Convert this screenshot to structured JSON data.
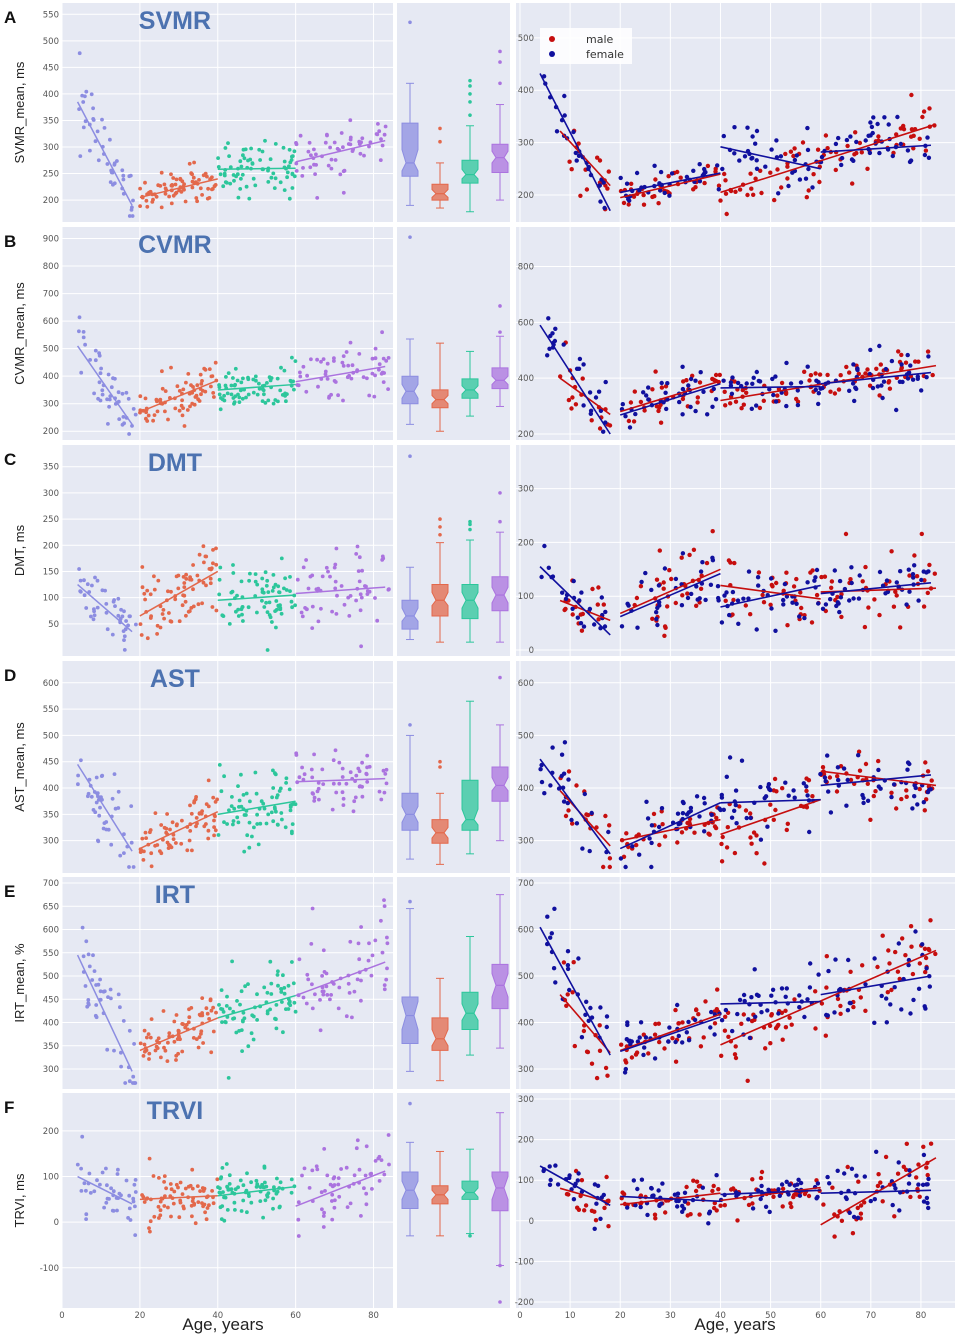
{
  "x_axis_label": "Age, years",
  "colors": {
    "young": "#8c8de1",
    "adult": "#e3684b",
    "middle": "#2cc69b",
    "older": "#ab73df",
    "male": "#c60e0e",
    "female": "#10109e",
    "bg": "#e6e9f3"
  },
  "legend": [
    {
      "label": "male",
      "color": "#c60e0e"
    },
    {
      "label": "female",
      "color": "#10109e"
    }
  ],
  "age_groups": [
    "0-20",
    "20-40",
    "40-60",
    "60+"
  ],
  "chart_data": [
    {
      "type": "scatter",
      "panel": "A",
      "title": "SVMR",
      "ylabel": "SVMR_mean, ms",
      "left_ticks": [
        "200",
        "250",
        "300",
        "350",
        "400",
        "450",
        "500",
        "550"
      ],
      "right_ticks": [
        "200",
        "300",
        "400",
        "500"
      ],
      "xlim": [
        0,
        85
      ],
      "ylim": [
        170,
        560
      ],
      "rylim": [
        160,
        555
      ],
      "fits": [
        [
          4,
          385,
          18,
          190
        ],
        [
          20,
          205,
          40,
          240
        ],
        [
          40,
          258,
          60,
          260
        ],
        [
          60,
          272,
          83,
          312
        ]
      ],
      "fits_male": [
        [
          8,
          322,
          18,
          218
        ],
        [
          20,
          195,
          40,
          240
        ],
        [
          40,
          205,
          83,
          335
        ]
      ],
      "fits_female": [
        [
          4,
          432,
          18,
          170
        ],
        [
          20,
          205,
          40,
          242
        ],
        [
          40,
          292,
          60,
          250
        ],
        [
          60,
          282,
          82,
          295
        ]
      ],
      "box": [
        {
          "min": 190,
          "q1": 245,
          "med": 270,
          "q3": 345,
          "max": 420,
          "nl": 255,
          "nh": 295
        },
        {
          "min": 185,
          "q1": 200,
          "med": 212,
          "q3": 230,
          "max": 270,
          "nl": 205,
          "nh": 220
        },
        {
          "min": 178,
          "q1": 232,
          "med": 248,
          "q3": 275,
          "max": 340,
          "nl": 240,
          "nh": 258
        },
        {
          "min": 200,
          "q1": 252,
          "med": 280,
          "q3": 305,
          "max": 380,
          "nl": 270,
          "nh": 292
        }
      ],
      "outliers": [
        [
          0,
          535
        ],
        [
          1,
          310
        ],
        [
          1,
          335
        ],
        [
          2,
          360
        ],
        [
          2,
          385
        ],
        [
          2,
          400
        ],
        [
          2,
          415
        ],
        [
          2,
          425
        ],
        [
          3,
          420
        ],
        [
          3,
          460
        ],
        [
          3,
          480
        ]
      ],
      "mean": [
        300,
        220,
        258,
        285
      ],
      "sd": [
        50,
        25,
        40,
        40
      ]
    },
    {
      "type": "scatter",
      "panel": "B",
      "title": "CVMR",
      "ylabel": "CVMR_mean, ms",
      "left_ticks": [
        "200",
        "300",
        "400",
        "500",
        "600",
        "700",
        "800",
        "900"
      ],
      "right_ticks": [
        "200",
        "400",
        "600",
        "800"
      ],
      "xlim": [
        0,
        85
      ],
      "ylim": [
        190,
        920
      ],
      "rylim": [
        200,
        920
      ],
      "fits": [
        [
          4,
          510,
          18,
          225
        ],
        [
          20,
          270,
          40,
          385
        ],
        [
          40,
          350,
          60,
          370
        ],
        [
          60,
          380,
          83,
          435
        ]
      ],
      "fits_male": [
        [
          8,
          400,
          18,
          270
        ],
        [
          20,
          280,
          40,
          390
        ],
        [
          40,
          320,
          83,
          445
        ]
      ],
      "fits_female": [
        [
          4,
          590,
          18,
          200
        ],
        [
          20,
          268,
          40,
          380
        ],
        [
          40,
          365,
          60,
          370
        ],
        [
          60,
          380,
          82,
          420
        ]
      ],
      "box": [
        {
          "min": 225,
          "q1": 300,
          "med": 345,
          "q3": 400,
          "max": 535,
          "nl": 320,
          "nh": 370
        },
        {
          "min": 200,
          "q1": 285,
          "med": 315,
          "q3": 350,
          "max": 520,
          "nl": 300,
          "nh": 330
        },
        {
          "min": 255,
          "q1": 320,
          "med": 350,
          "q3": 390,
          "max": 490,
          "nl": 335,
          "nh": 365
        },
        {
          "min": 290,
          "q1": 355,
          "med": 385,
          "q3": 430,
          "max": 545,
          "nl": 370,
          "nh": 400
        }
      ],
      "outliers": [
        [
          0,
          905
        ],
        [
          3,
          560
        ],
        [
          3,
          655
        ]
      ],
      "mean": [
        370,
        330,
        360,
        395
      ],
      "sd": [
        80,
        65,
        55,
        70
      ]
    },
    {
      "type": "scatter",
      "panel": "C",
      "title": "DMT",
      "ylabel": "DMT, ms",
      "left_ticks": [
        "50",
        "100",
        "150",
        "200",
        "250",
        "300",
        "350"
      ],
      "right_ticks": [
        "0",
        "100",
        "200",
        "300"
      ],
      "xlim": [
        0,
        85
      ],
      "ylim": [
        0,
        380
      ],
      "rylim": [
        0,
        370
      ],
      "fits": [
        [
          4,
          125,
          18,
          35
        ],
        [
          20,
          65,
          40,
          150
        ],
        [
          40,
          95,
          60,
          105
        ],
        [
          60,
          108,
          83,
          120
        ]
      ],
      "fits_male": [
        [
          8,
          92,
          18,
          55
        ],
        [
          20,
          68,
          40,
          150
        ],
        [
          40,
          120,
          60,
          95
        ],
        [
          60,
          108,
          83,
          115
        ]
      ],
      "fits_female": [
        [
          4,
          155,
          18,
          28
        ],
        [
          20,
          62,
          40,
          142
        ],
        [
          40,
          80,
          60,
          120
        ],
        [
          60,
          105,
          82,
          125
        ]
      ],
      "box": [
        {
          "min": 20,
          "q1": 40,
          "med": 65,
          "q3": 95,
          "max": 158,
          "nl": 55,
          "nh": 80
        },
        {
          "min": 15,
          "q1": 65,
          "med": 95,
          "q3": 125,
          "max": 205,
          "nl": 85,
          "nh": 110
        },
        {
          "min": 15,
          "q1": 60,
          "med": 95,
          "q3": 125,
          "max": 210,
          "nl": 80,
          "nh": 110
        },
        {
          "min": 15,
          "q1": 75,
          "med": 105,
          "q3": 140,
          "max": 225,
          "nl": 90,
          "nh": 120
        }
      ],
      "outliers": [
        [
          0,
          370
        ],
        [
          1,
          220
        ],
        [
          1,
          235
        ],
        [
          1,
          250
        ],
        [
          2,
          230
        ],
        [
          2,
          240
        ],
        [
          2,
          245
        ],
        [
          3,
          245
        ],
        [
          3,
          300
        ]
      ],
      "mean": [
        80,
        105,
        95,
        110
      ],
      "sd": [
        35,
        45,
        45,
        50
      ]
    },
    {
      "type": "scatter",
      "panel": "D",
      "title": "AST",
      "ylabel": "AST_mean, ms",
      "left_ticks": [
        "300",
        "350",
        "400",
        "450",
        "500",
        "550",
        "600"
      ],
      "right_ticks": [
        "300",
        "400",
        "500",
        "600"
      ],
      "xlim": [
        0,
        85
      ],
      "ylim": [
        250,
        630
      ],
      "rylim": [
        250,
        630
      ],
      "fits": [
        [
          4,
          445,
          18,
          280
        ],
        [
          20,
          285,
          40,
          355
        ],
        [
          40,
          350,
          60,
          375
        ],
        [
          60,
          412,
          83,
          418
        ]
      ],
      "fits_male": [
        [
          8,
          395,
          18,
          290
        ],
        [
          20,
          300,
          40,
          340
        ],
        [
          40,
          312,
          60,
          378
        ],
        [
          60,
          432,
          83,
          405
        ]
      ],
      "fits_female": [
        [
          4,
          455,
          18,
          275
        ],
        [
          20,
          285,
          40,
          372
        ],
        [
          40,
          372,
          60,
          378
        ],
        [
          60,
          405,
          82,
          425
        ]
      ],
      "box": [
        {
          "min": 265,
          "q1": 320,
          "med": 350,
          "q3": 390,
          "max": 500,
          "nl": 335,
          "nh": 365
        },
        {
          "min": 255,
          "q1": 295,
          "med": 315,
          "q3": 340,
          "max": 390,
          "nl": 305,
          "nh": 325
        },
        {
          "min": 275,
          "q1": 320,
          "med": 340,
          "q3": 415,
          "max": 565,
          "nl": 330,
          "nh": 360
        },
        {
          "min": 300,
          "q1": 375,
          "med": 405,
          "q3": 440,
          "max": 520,
          "nl": 395,
          "nh": 420
        }
      ],
      "outliers": [
        [
          0,
          520
        ],
        [
          1,
          440
        ],
        [
          1,
          450
        ],
        [
          3,
          610
        ]
      ],
      "mean": [
        355,
        320,
        355,
        410
      ],
      "sd": [
        55,
        35,
        50,
        45
      ]
    },
    {
      "type": "scatter",
      "panel": "E",
      "title": "IRT",
      "ylabel": "IRT_mean, %",
      "left_ticks": [
        "300",
        "350",
        "400",
        "450",
        "500",
        "550",
        "600",
        "650",
        "700"
      ],
      "right_ticks": [
        "300",
        "400",
        "500",
        "600",
        "700"
      ],
      "xlim": [
        0,
        85
      ],
      "ylim": [
        270,
        700
      ],
      "rylim": [
        270,
        700
      ],
      "fits": [
        [
          4,
          545,
          18,
          295
        ],
        [
          20,
          340,
          40,
          410
        ],
        [
          40,
          410,
          60,
          458
        ],
        [
          60,
          458,
          83,
          530
        ]
      ],
      "fits_male": [
        [
          8,
          460,
          18,
          335
        ],
        [
          20,
          340,
          40,
          418
        ],
        [
          40,
          352,
          83,
          555
        ]
      ],
      "fits_female": [
        [
          4,
          605,
          18,
          330
        ],
        [
          20,
          338,
          40,
          412
        ],
        [
          40,
          440,
          60,
          445
        ],
        [
          60,
          460,
          82,
          500
        ]
      ],
      "box": [
        {
          "min": 295,
          "q1": 355,
          "med": 415,
          "q3": 455,
          "max": 645,
          "nl": 385,
          "nh": 445
        },
        {
          "min": 275,
          "q1": 340,
          "med": 365,
          "q3": 410,
          "max": 495,
          "nl": 350,
          "nh": 385
        },
        {
          "min": 330,
          "q1": 385,
          "med": 420,
          "q3": 465,
          "max": 585,
          "nl": 405,
          "nh": 440
        },
        {
          "min": 345,
          "q1": 430,
          "med": 480,
          "q3": 525,
          "max": 675,
          "nl": 455,
          "nh": 505
        }
      ],
      "outliers": [
        [
          0,
          660
        ]
      ],
      "mean": [
        420,
        375,
        425,
        480
      ],
      "sd": [
        75,
        40,
        55,
        70
      ]
    },
    {
      "type": "scatter",
      "panel": "F",
      "title": "TRVI",
      "ylabel": "TRVI, ms",
      "left_ticks": [
        "-100",
        "0",
        "100",
        "200"
      ],
      "right_ticks": [
        "-200",
        "-100",
        "0",
        "100",
        "200",
        "300"
      ],
      "xlim": [
        0,
        85
      ],
      "ylim": [
        -175,
        270
      ],
      "rylim": [
        -200,
        300
      ],
      "fits": [
        [
          4,
          100,
          18,
          40
        ],
        [
          20,
          50,
          40,
          58
        ],
        [
          40,
          58,
          60,
          78
        ],
        [
          60,
          35,
          83,
          112
        ]
      ],
      "fits_male": [
        [
          8,
          80,
          18,
          45
        ],
        [
          20,
          40,
          40,
          68
        ],
        [
          40,
          50,
          60,
          82
        ],
        [
          60,
          -10,
          83,
          155
        ]
      ],
      "fits_female": [
        [
          4,
          135,
          18,
          38
        ],
        [
          20,
          60,
          40,
          48
        ],
        [
          40,
          65,
          60,
          75
        ],
        [
          60,
          68,
          82,
          75
        ]
      ],
      "box": [
        {
          "min": -30,
          "q1": 30,
          "med": 70,
          "q3": 110,
          "max": 175,
          "nl": 50,
          "nh": 90
        },
        {
          "min": -30,
          "q1": 40,
          "med": 60,
          "q3": 80,
          "max": 155,
          "nl": 50,
          "nh": 70
        },
        {
          "min": -25,
          "q1": 50,
          "med": 65,
          "q3": 90,
          "max": 160,
          "nl": 55,
          "nh": 75
        },
        {
          "min": -95,
          "q1": 25,
          "med": 75,
          "q3": 110,
          "max": 240,
          "nl": 50,
          "nh": 100
        }
      ],
      "outliers": [
        [
          0,
          260
        ],
        [
          2,
          -30
        ],
        [
          3,
          -95
        ],
        [
          3,
          -175
        ]
      ],
      "mean": [
        70,
        60,
        70,
        70
      ],
      "sd": [
        50,
        35,
        35,
        65
      ]
    }
  ]
}
